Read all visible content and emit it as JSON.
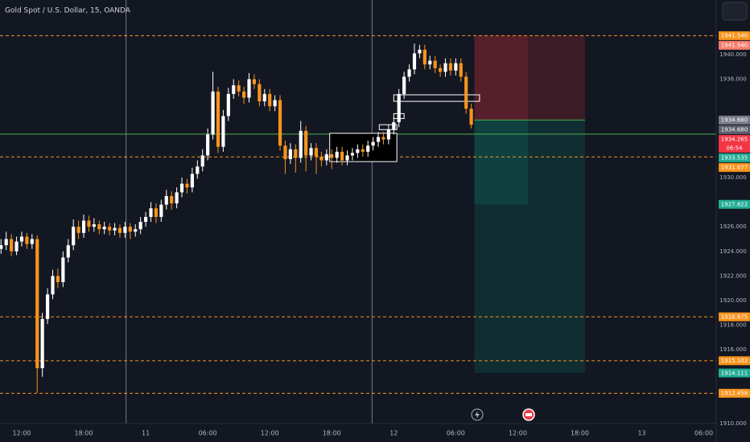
{
  "chart_data": {
    "type": "candlestick",
    "title": "Gold Spot / U.S. Dollar, 15, OANDA",
    "x": [
      -2,
      -1.5,
      -1,
      -0.5,
      0,
      0.5,
      1,
      1.5,
      2,
      2.5,
      3,
      3.5,
      4,
      4.5,
      5,
      5.5,
      6,
      6.5,
      7,
      7.5,
      8,
      8.5,
      9,
      9.5,
      10,
      10.5,
      11,
      11.5,
      12,
      12.5,
      13,
      13.5,
      14,
      14.5,
      15,
      15.5,
      16,
      16.5,
      17,
      17.5,
      18,
      18.5,
      19,
      19.5,
      20,
      20.5,
      21,
      21.5,
      22,
      22.5,
      23,
      23.5,
      24,
      24.5,
      25,
      25.5,
      26,
      26.5,
      27,
      27.5,
      28,
      28.5,
      29,
      29.5,
      30,
      30.5,
      31,
      31.5,
      32,
      32.5,
      33,
      33.5,
      34,
      34.5,
      35,
      35.5,
      36,
      36.5,
      37,
      37.5,
      38,
      38.5,
      39,
      39.5,
      40,
      40.5,
      41,
      41.5,
      42,
      42.5,
      43,
      43.5
    ],
    "open": [
      1924.2,
      1924.5,
      1925.0,
      1924.0,
      1924.8,
      1925.2,
      1924.6,
      1925.0,
      1914.5,
      1918.5,
      1920.5,
      1922.0,
      1921.5,
      1923.5,
      1924.5,
      1926.0,
      1925.5,
      1926.5,
      1926.0,
      1926.2,
      1925.8,
      1926.0,
      1925.7,
      1925.9,
      1925.5,
      1926.0,
      1925.6,
      1925.8,
      1926.4,
      1926.8,
      1927.5,
      1926.8,
      1927.8,
      1928.5,
      1927.9,
      1928.8,
      1929.5,
      1929.2,
      1930.3,
      1930.9,
      1931.8,
      1933.5,
      1937.0,
      1932.5,
      1935.0,
      1936.8,
      1937.5,
      1937.0,
      1936.5,
      1938.0,
      1937.6,
      1936.2,
      1936.8,
      1935.8,
      1936.3,
      1932.6,
      1931.5,
      1932.3,
      1931.6,
      1933.8,
      1931.8,
      1932.4,
      1931.7,
      1931.4,
      1931.9,
      1931.6,
      1932.1,
      1931.4,
      1931.8,
      1932.0,
      1932.3,
      1932.1,
      1932.6,
      1932.9,
      1933.3,
      1933.1,
      1933.9,
      1934.5,
      1936.8,
      1938.2,
      1938.8,
      1940.1,
      1940.4,
      1939.2,
      1939.5,
      1938.9,
      1938.6,
      1939.3,
      1938.7,
      1939.3,
      1938.2,
      1935.6
    ],
    "high": [
      1925.0,
      1925.6,
      1925.4,
      1925.2,
      1925.6,
      1925.5,
      1925.4,
      1925.3,
      1919.0,
      1921.0,
      1922.5,
      1922.6,
      1924.0,
      1925.0,
      1926.6,
      1926.5,
      1927.0,
      1926.9,
      1926.7,
      1926.5,
      1926.4,
      1926.3,
      1926.3,
      1926.2,
      1926.4,
      1926.3,
      1926.2,
      1926.8,
      1927.2,
      1928.0,
      1927.9,
      1928.2,
      1929.0,
      1928.9,
      1929.2,
      1930.0,
      1929.9,
      1930.8,
      1931.4,
      1932.3,
      1934.0,
      1938.6,
      1937.4,
      1935.5,
      1937.3,
      1938.0,
      1937.9,
      1937.4,
      1938.5,
      1938.4,
      1938.0,
      1937.2,
      1937.2,
      1936.7,
      1936.7,
      1933.0,
      1932.8,
      1932.7,
      1934.6,
      1934.2,
      1932.8,
      1932.8,
      1932.1,
      1932.3,
      1932.3,
      1932.5,
      1932.5,
      1932.2,
      1932.4,
      1932.7,
      1932.7,
      1933.0,
      1933.3,
      1933.7,
      1933.7,
      1934.3,
      1934.9,
      1937.2,
      1938.6,
      1939.2,
      1940.9,
      1940.8,
      1940.8,
      1939.9,
      1939.9,
      1939.2,
      1939.7,
      1939.7,
      1939.7,
      1939.7,
      1938.6,
      1936.0
    ],
    "low": [
      1923.8,
      1924.1,
      1923.6,
      1923.7,
      1924.4,
      1924.2,
      1924.2,
      1912.5,
      1913.8,
      1918.1,
      1920.1,
      1921.0,
      1921.1,
      1923.1,
      1924.1,
      1925.0,
      1925.1,
      1925.6,
      1925.6,
      1925.4,
      1925.4,
      1925.3,
      1925.3,
      1925.1,
      1925.1,
      1925.0,
      1925.2,
      1925.4,
      1926.0,
      1926.4,
      1926.3,
      1926.4,
      1927.4,
      1927.4,
      1927.5,
      1928.4,
      1928.7,
      1928.8,
      1929.9,
      1930.5,
      1931.4,
      1933.1,
      1932.0,
      1932.1,
      1934.6,
      1936.4,
      1936.6,
      1936.0,
      1936.1,
      1937.2,
      1935.8,
      1935.8,
      1935.4,
      1935.4,
      1932.2,
      1930.3,
      1931.1,
      1930.4,
      1931.2,
      1930.5,
      1931.4,
      1930.3,
      1930.9,
      1931.0,
      1930.7,
      1931.2,
      1931.0,
      1931.0,
      1931.4,
      1931.6,
      1931.7,
      1931.7,
      1932.2,
      1932.5,
      1932.7,
      1932.7,
      1933.5,
      1934.1,
      1936.4,
      1937.8,
      1938.4,
      1939.7,
      1938.8,
      1938.8,
      1938.5,
      1938.2,
      1938.2,
      1938.3,
      1938.3,
      1937.8,
      1935.2,
      1934.0
    ],
    "close": [
      1924.5,
      1925.0,
      1924.0,
      1924.8,
      1925.2,
      1924.6,
      1925.0,
      1914.5,
      1918.5,
      1920.5,
      1922.0,
      1921.5,
      1923.5,
      1924.5,
      1926.0,
      1925.5,
      1926.5,
      1926.0,
      1926.2,
      1925.8,
      1926.0,
      1925.7,
      1925.9,
      1925.5,
      1926.0,
      1925.6,
      1925.8,
      1926.4,
      1926.8,
      1927.5,
      1926.8,
      1927.8,
      1928.5,
      1927.9,
      1928.8,
      1929.5,
      1929.2,
      1930.3,
      1930.9,
      1931.8,
      1933.5,
      1937.0,
      1932.5,
      1935.0,
      1936.8,
      1937.5,
      1937.0,
      1936.5,
      1938.0,
      1937.6,
      1936.2,
      1936.8,
      1935.8,
      1936.3,
      1932.6,
      1931.5,
      1932.3,
      1931.6,
      1933.8,
      1931.8,
      1932.4,
      1931.7,
      1931.4,
      1931.9,
      1931.6,
      1932.1,
      1931.4,
      1931.8,
      1932.0,
      1932.3,
      1932.1,
      1932.6,
      1932.9,
      1933.3,
      1933.1,
      1933.9,
      1934.5,
      1936.8,
      1938.2,
      1938.8,
      1940.1,
      1940.4,
      1939.2,
      1939.5,
      1938.9,
      1938.6,
      1939.3,
      1938.7,
      1939.3,
      1938.2,
      1935.6,
      1934.3
    ],
    "up_color": "#ffffff",
    "down_color": "#f7941d",
    "xlim": [
      -2.1,
      67.2
    ],
    "xticks": [
      {
        "value": 0,
        "label": "12:00"
      },
      {
        "value": 6,
        "label": "18:00"
      },
      {
        "value": 12,
        "label": "11"
      },
      {
        "value": 18,
        "label": "06:00"
      },
      {
        "value": 24,
        "label": "12:00"
      },
      {
        "value": 30,
        "label": "18:00"
      },
      {
        "value": 36,
        "label": "12"
      },
      {
        "value": 42,
        "label": "06:00"
      },
      {
        "value": 48,
        "label": "12:00"
      },
      {
        "value": 54,
        "label": "18:00"
      },
      {
        "value": 60,
        "label": "13"
      },
      {
        "value": 66,
        "label": "06:00"
      }
    ],
    "ylim": [
      1910,
      1944.44
    ],
    "yticks": [
      {
        "value": 1910,
        "label": "1910.000"
      },
      {
        "value": 1916,
        "label": "1916.000"
      },
      {
        "value": 1918,
        "label": "1918.000"
      },
      {
        "value": 1920,
        "label": "1920.000"
      },
      {
        "value": 1922,
        "label": "1922.000"
      },
      {
        "value": 1924,
        "label": "1924.000"
      },
      {
        "value": 1926,
        "label": "1926.000"
      },
      {
        "value": 1930,
        "label": "1930.000"
      },
      {
        "value": 1938,
        "label": "1938.000"
      },
      {
        "value": 1940,
        "label": "1940.000"
      }
    ],
    "session_lines": [
      10.1,
      33.9
    ],
    "levels": [
      {
        "value": 1941.54,
        "color": "#f7941d"
      },
      {
        "value": 1931.677,
        "color": "#f7941d"
      },
      {
        "value": 1918.675,
        "color": "#f7941d"
      },
      {
        "value": 1915.103,
        "color": "#f7941d"
      },
      {
        "value": 1912.458,
        "color": "#f7941d"
      }
    ],
    "price_line": {
      "value": 1933.535,
      "color": "#4caf50"
    },
    "position": {
      "entry": 1934.68,
      "stop": 1941.54,
      "target1": 1927.822,
      "target2": 1914.111,
      "x": [
        43.8,
        49,
        54.5
      ]
    },
    "zones": [
      {
        "x": [
          29.8,
          36.3
        ],
        "y": [
          1931.3,
          1933.6
        ],
        "fill": "#000000"
      },
      {
        "x": [
          36.0,
          44.3
        ],
        "y": [
          1936.2,
          1936.73
        ],
        "fill": "none"
      },
      {
        "x": [
          36.0,
          37.0
        ],
        "y": [
          1934.8,
          1935.2
        ],
        "fill": "none"
      },
      {
        "x": [
          34.6,
          36.3
        ],
        "y": [
          1933.9,
          1934.3
        ],
        "fill": "none"
      }
    ],
    "price_labels": [
      {
        "value": 1941.54,
        "label": "1941.540",
        "color": "#f7941d"
      },
      {
        "value": 1941.54,
        "label": "1941.540",
        "color": "#f77c6c"
      },
      {
        "value": 1934.68,
        "label": "1934.680",
        "color": "#787b86"
      },
      {
        "value": 1934.68,
        "label": "1934.680",
        "color": "#5d606b"
      },
      {
        "value": 1934.265,
        "label": "1934.265",
        "color": "#f23645",
        "countdown": "06:54"
      },
      {
        "value": 1933.535,
        "label": "1933.535",
        "color": "#22ab94"
      },
      {
        "value": 1931.677,
        "label": "1931.677",
        "color": "#f7941d"
      },
      {
        "value": 1927.822,
        "label": "1927.822",
        "color": "#22ab94"
      },
      {
        "value": 1918.675,
        "label": "1918.675",
        "color": "#f7941d"
      },
      {
        "value": 1915.103,
        "label": "1915.103",
        "color": "#f7941d"
      },
      {
        "value": 1914.111,
        "label": "1914.111",
        "color": "#22ab94"
      },
      {
        "value": 1912.458,
        "label": "1912.458",
        "color": "#f7941d"
      }
    ]
  }
}
